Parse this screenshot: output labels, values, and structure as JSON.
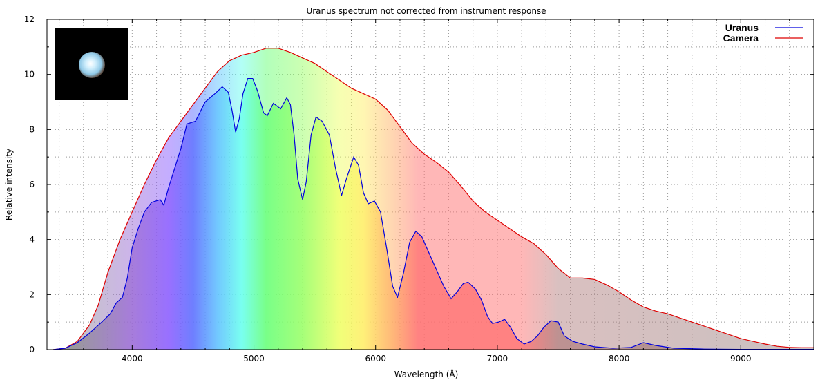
{
  "chart_data": {
    "type": "area",
    "title": "Uranus spectrum not corrected from instrument response",
    "xlabel": "Wavelength (Å)",
    "ylabel": "Relative intensity",
    "xlim": [
      3300,
      9600
    ],
    "ylim": [
      0,
      12
    ],
    "x_ticks": [
      4000,
      5000,
      6000,
      7000,
      8000,
      9000
    ],
    "y_ticks": [
      0,
      2,
      4,
      6,
      8,
      10,
      12
    ],
    "grid": true,
    "legend_position": "top-right",
    "series": [
      {
        "name": "Uranus",
        "color": "#0000dd",
        "points": [
          [
            3350,
            0
          ],
          [
            3450,
            0.05
          ],
          [
            3550,
            0.25
          ],
          [
            3650,
            0.6
          ],
          [
            3750,
            1.0
          ],
          [
            3820,
            1.3
          ],
          [
            3870,
            1.7
          ],
          [
            3920,
            1.9
          ],
          [
            3960,
            2.6
          ],
          [
            4000,
            3.7
          ],
          [
            4050,
            4.4
          ],
          [
            4100,
            5.0
          ],
          [
            4160,
            5.35
          ],
          [
            4230,
            5.45
          ],
          [
            4260,
            5.25
          ],
          [
            4300,
            5.9
          ],
          [
            4350,
            6.6
          ],
          [
            4400,
            7.3
          ],
          [
            4450,
            8.2
          ],
          [
            4520,
            8.3
          ],
          [
            4600,
            9.0
          ],
          [
            4680,
            9.3
          ],
          [
            4740,
            9.55
          ],
          [
            4790,
            9.35
          ],
          [
            4820,
            8.7
          ],
          [
            4850,
            7.9
          ],
          [
            4880,
            8.4
          ],
          [
            4910,
            9.3
          ],
          [
            4950,
            9.85
          ],
          [
            4990,
            9.85
          ],
          [
            5030,
            9.4
          ],
          [
            5080,
            8.6
          ],
          [
            5110,
            8.5
          ],
          [
            5160,
            8.95
          ],
          [
            5220,
            8.75
          ],
          [
            5270,
            9.15
          ],
          [
            5300,
            8.9
          ],
          [
            5330,
            7.8
          ],
          [
            5360,
            6.2
          ],
          [
            5400,
            5.45
          ],
          [
            5430,
            6.1
          ],
          [
            5470,
            7.8
          ],
          [
            5510,
            8.45
          ],
          [
            5560,
            8.3
          ],
          [
            5620,
            7.8
          ],
          [
            5670,
            6.6
          ],
          [
            5720,
            5.6
          ],
          [
            5760,
            6.2
          ],
          [
            5820,
            7.0
          ],
          [
            5860,
            6.7
          ],
          [
            5900,
            5.7
          ],
          [
            5940,
            5.3
          ],
          [
            5990,
            5.4
          ],
          [
            6040,
            5.0
          ],
          [
            6090,
            3.7
          ],
          [
            6140,
            2.3
          ],
          [
            6180,
            1.9
          ],
          [
            6230,
            2.8
          ],
          [
            6280,
            3.9
          ],
          [
            6330,
            4.3
          ],
          [
            6380,
            4.1
          ],
          [
            6440,
            3.5
          ],
          [
            6500,
            2.9
          ],
          [
            6560,
            2.3
          ],
          [
            6620,
            1.85
          ],
          [
            6670,
            2.1
          ],
          [
            6720,
            2.4
          ],
          [
            6760,
            2.45
          ],
          [
            6820,
            2.2
          ],
          [
            6870,
            1.8
          ],
          [
            6920,
            1.2
          ],
          [
            6960,
            0.95
          ],
          [
            7010,
            1.0
          ],
          [
            7060,
            1.1
          ],
          [
            7110,
            0.8
          ],
          [
            7160,
            0.4
          ],
          [
            7220,
            0.2
          ],
          [
            7280,
            0.3
          ],
          [
            7330,
            0.5
          ],
          [
            7380,
            0.8
          ],
          [
            7440,
            1.05
          ],
          [
            7500,
            1.0
          ],
          [
            7550,
            0.5
          ],
          [
            7620,
            0.3
          ],
          [
            7700,
            0.2
          ],
          [
            7800,
            0.1
          ],
          [
            7950,
            0.05
          ],
          [
            8100,
            0.08
          ],
          [
            8200,
            0.25
          ],
          [
            8300,
            0.15
          ],
          [
            8450,
            0.05
          ],
          [
            8700,
            0.02
          ],
          [
            9000,
            0.01
          ],
          [
            9600,
            0.01
          ]
        ]
      },
      {
        "name": "Camera",
        "color": "#dd0000",
        "points": [
          [
            3350,
            0
          ],
          [
            3450,
            0.05
          ],
          [
            3550,
            0.3
          ],
          [
            3650,
            0.9
          ],
          [
            3720,
            1.6
          ],
          [
            3800,
            2.8
          ],
          [
            3900,
            4.0
          ],
          [
            4000,
            5.0
          ],
          [
            4100,
            6.0
          ],
          [
            4200,
            6.9
          ],
          [
            4300,
            7.7
          ],
          [
            4400,
            8.3
          ],
          [
            4500,
            8.9
          ],
          [
            4600,
            9.5
          ],
          [
            4700,
            10.1
          ],
          [
            4800,
            10.5
          ],
          [
            4900,
            10.7
          ],
          [
            5000,
            10.8
          ],
          [
            5100,
            10.95
          ],
          [
            5200,
            10.95
          ],
          [
            5300,
            10.8
          ],
          [
            5400,
            10.6
          ],
          [
            5500,
            10.4
          ],
          [
            5600,
            10.1
          ],
          [
            5700,
            9.8
          ],
          [
            5800,
            9.5
          ],
          [
            5900,
            9.3
          ],
          [
            6000,
            9.1
          ],
          [
            6100,
            8.7
          ],
          [
            6200,
            8.1
          ],
          [
            6300,
            7.5
          ],
          [
            6400,
            7.1
          ],
          [
            6500,
            6.8
          ],
          [
            6600,
            6.45
          ],
          [
            6700,
            5.95
          ],
          [
            6800,
            5.4
          ],
          [
            6900,
            5.0
          ],
          [
            7000,
            4.7
          ],
          [
            7100,
            4.4
          ],
          [
            7200,
            4.1
          ],
          [
            7300,
            3.85
          ],
          [
            7400,
            3.45
          ],
          [
            7500,
            2.95
          ],
          [
            7600,
            2.6
          ],
          [
            7700,
            2.6
          ],
          [
            7800,
            2.55
          ],
          [
            7900,
            2.35
          ],
          [
            8000,
            2.1
          ],
          [
            8100,
            1.8
          ],
          [
            8200,
            1.55
          ],
          [
            8300,
            1.4
          ],
          [
            8400,
            1.3
          ],
          [
            8500,
            1.15
          ],
          [
            8600,
            1.0
          ],
          [
            8700,
            0.85
          ],
          [
            8800,
            0.7
          ],
          [
            8900,
            0.55
          ],
          [
            9000,
            0.4
          ],
          [
            9100,
            0.3
          ],
          [
            9200,
            0.2
          ],
          [
            9300,
            0.12
          ],
          [
            9400,
            0.08
          ],
          [
            9500,
            0.07
          ],
          [
            9600,
            0.07
          ]
        ]
      }
    ],
    "spectrum_gradient": [
      {
        "wavelength": 3500,
        "color": "#8b8b8b"
      },
      {
        "wavelength": 4000,
        "color": "#9a6ad6"
      },
      {
        "wavelength": 4300,
        "color": "#8a5cff"
      },
      {
        "wavelength": 4500,
        "color": "#5a6cff"
      },
      {
        "wavelength": 4700,
        "color": "#5ec0ff"
      },
      {
        "wavelength": 4900,
        "color": "#66ffee"
      },
      {
        "wavelength": 5100,
        "color": "#66ff77"
      },
      {
        "wavelength": 5400,
        "color": "#99ff66"
      },
      {
        "wavelength": 5700,
        "color": "#eeff66"
      },
      {
        "wavelength": 5900,
        "color": "#ffee66"
      },
      {
        "wavelength": 6150,
        "color": "#ffaa66"
      },
      {
        "wavelength": 6350,
        "color": "#ff7070"
      },
      {
        "wavelength": 7200,
        "color": "#ff7070"
      },
      {
        "wavelength": 7500,
        "color": "#b48282"
      },
      {
        "wavelength": 9600,
        "color": "#968282"
      }
    ]
  },
  "inset": {
    "label": "uranus-thumbnail",
    "background": "#000000",
    "planet_color": "#bde3f5"
  }
}
